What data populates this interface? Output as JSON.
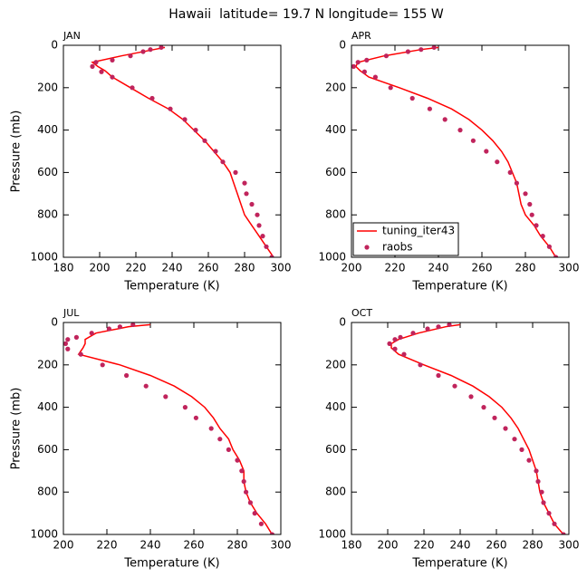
{
  "title": "Hawaii  latitude= 19.7 N longitude= 155 W",
  "chart_data": [
    {
      "type": "line",
      "panel_label": "JAN",
      "xlabel": "Temperature (K)",
      "ylabel": "Pressure (mb)",
      "xlim": [
        180,
        300
      ],
      "xticks": [
        180,
        200,
        220,
        240,
        260,
        280,
        300
      ],
      "ylim": [
        1000,
        0
      ],
      "yticks": [
        0,
        200,
        400,
        600,
        800,
        1000
      ],
      "series": [
        {
          "type": "line",
          "color": "#ff0000",
          "x": [
            236,
            230,
            212,
            196,
            199,
            203,
            207,
            217,
            227,
            238,
            246,
            252,
            258,
            263,
            268,
            272,
            274,
            276,
            278,
            280,
            284,
            288,
            292,
            296
          ],
          "y": [
            10,
            20,
            50,
            80,
            100,
            120,
            150,
            200,
            250,
            300,
            350,
            400,
            450,
            500,
            550,
            600,
            650,
            700,
            750,
            800,
            850,
            900,
            950,
            1000
          ]
        },
        {
          "type": "scatter",
          "color": "#c0245c",
          "x": [
            234,
            228,
            224,
            217,
            207,
            198,
            196,
            201,
            207,
            218,
            229,
            239,
            247,
            253,
            258,
            264,
            268,
            275,
            280,
            281,
            284,
            287,
            288,
            290,
            292,
            295
          ],
          "y": [
            10,
            20,
            30,
            50,
            70,
            80,
            100,
            125,
            150,
            200,
            250,
            300,
            350,
            400,
            450,
            500,
            550,
            600,
            650,
            700,
            750,
            800,
            850,
            900,
            950,
            1000
          ]
        }
      ]
    },
    {
      "type": "line",
      "panel_label": "APR",
      "xlabel": "Temperature (K)",
      "xlim": [
        200,
        300
      ],
      "xticks": [
        200,
        220,
        240,
        260,
        280,
        300
      ],
      "ylim": [
        1000,
        0
      ],
      "yticks": [
        0,
        200,
        400,
        600,
        800,
        1000
      ],
      "legend": "lower left",
      "series": [
        {
          "name": "tuning_iter43",
          "type": "line",
          "color": "#ff0000",
          "x": [
            240,
            232,
            215,
            203,
            202,
            204,
            208,
            222,
            235,
            246,
            254,
            260,
            265,
            269,
            272,
            274,
            276,
            277,
            278,
            280,
            284,
            287,
            291,
            294
          ],
          "y": [
            10,
            20,
            50,
            80,
            100,
            120,
            150,
            200,
            250,
            300,
            350,
            400,
            450,
            500,
            550,
            600,
            650,
            700,
            750,
            800,
            850,
            900,
            950,
            1000
          ]
        },
        {
          "name": "raobs",
          "type": "scatter",
          "color": "#c0245c",
          "x": [
            238,
            232,
            226,
            216,
            207,
            203,
            201,
            206,
            211,
            218,
            228,
            236,
            243,
            250,
            256,
            262,
            267,
            273,
            276,
            280,
            282,
            283,
            285,
            288,
            291,
            294
          ],
          "y": [
            10,
            20,
            30,
            50,
            70,
            80,
            100,
            125,
            150,
            200,
            250,
            300,
            350,
            400,
            450,
            500,
            550,
            600,
            650,
            700,
            750,
            800,
            850,
            900,
            950,
            1000
          ]
        }
      ]
    },
    {
      "type": "line",
      "panel_label": "JUL",
      "xlabel": "Temperature (K)",
      "ylabel": "Pressure (mb)",
      "xlim": [
        200,
        300
      ],
      "xticks": [
        200,
        220,
        240,
        260,
        280,
        300
      ],
      "ylim": [
        1000,
        0
      ],
      "yticks": [
        0,
        200,
        400,
        600,
        800,
        1000
      ],
      "series": [
        {
          "type": "line",
          "color": "#ff0000",
          "x": [
            240,
            230,
            215,
            210,
            210,
            209,
            207,
            226,
            240,
            251,
            259,
            265,
            269,
            272,
            276,
            278,
            281,
            283,
            283,
            284,
            286,
            289,
            293,
            296
          ],
          "y": [
            10,
            20,
            50,
            80,
            100,
            120,
            150,
            200,
            250,
            300,
            350,
            400,
            450,
            500,
            550,
            600,
            650,
            700,
            750,
            800,
            850,
            900,
            950,
            1000
          ]
        },
        {
          "type": "scatter",
          "color": "#c0245c",
          "x": [
            232,
            226,
            221,
            213,
            206,
            202,
            201,
            202,
            208,
            218,
            229,
            238,
            247,
            256,
            261,
            268,
            272,
            276,
            280,
            282,
            283,
            284,
            286,
            288,
            291,
            296
          ],
          "y": [
            10,
            20,
            30,
            50,
            70,
            80,
            100,
            125,
            150,
            200,
            250,
            300,
            350,
            400,
            450,
            500,
            550,
            600,
            650,
            700,
            750,
            800,
            850,
            900,
            950,
            1000
          ]
        }
      ]
    },
    {
      "type": "line",
      "panel_label": "OCT",
      "xlabel": "Temperature (K)",
      "xlim": [
        180,
        300
      ],
      "xticks": [
        180,
        200,
        220,
        240,
        260,
        280,
        300
      ],
      "ylim": [
        1000,
        0
      ],
      "yticks": [
        0,
        200,
        400,
        600,
        800,
        1000
      ],
      "series": [
        {
          "type": "line",
          "color": "#ff0000",
          "x": [
            240,
            232,
            217,
            206,
            202,
            202,
            206,
            220,
            235,
            247,
            256,
            263,
            268,
            272,
            275,
            278,
            280,
            282,
            283,
            284,
            286,
            289,
            292,
            297
          ],
          "y": [
            10,
            20,
            50,
            80,
            100,
            120,
            150,
            200,
            250,
            300,
            350,
            400,
            450,
            500,
            550,
            600,
            650,
            700,
            750,
            800,
            850,
            900,
            950,
            1000
          ]
        },
        {
          "type": "scatter",
          "color": "#c0245c",
          "x": [
            234,
            228,
            222,
            214,
            207,
            204,
            201,
            204,
            209,
            218,
            228,
            237,
            246,
            253,
            259,
            265,
            270,
            274,
            278,
            282,
            283,
            285,
            286,
            289,
            292,
            297
          ],
          "y": [
            10,
            20,
            30,
            50,
            70,
            80,
            100,
            125,
            150,
            200,
            250,
            300,
            350,
            400,
            450,
            500,
            550,
            600,
            650,
            700,
            750,
            800,
            850,
            900,
            950,
            1000
          ]
        }
      ]
    }
  ]
}
